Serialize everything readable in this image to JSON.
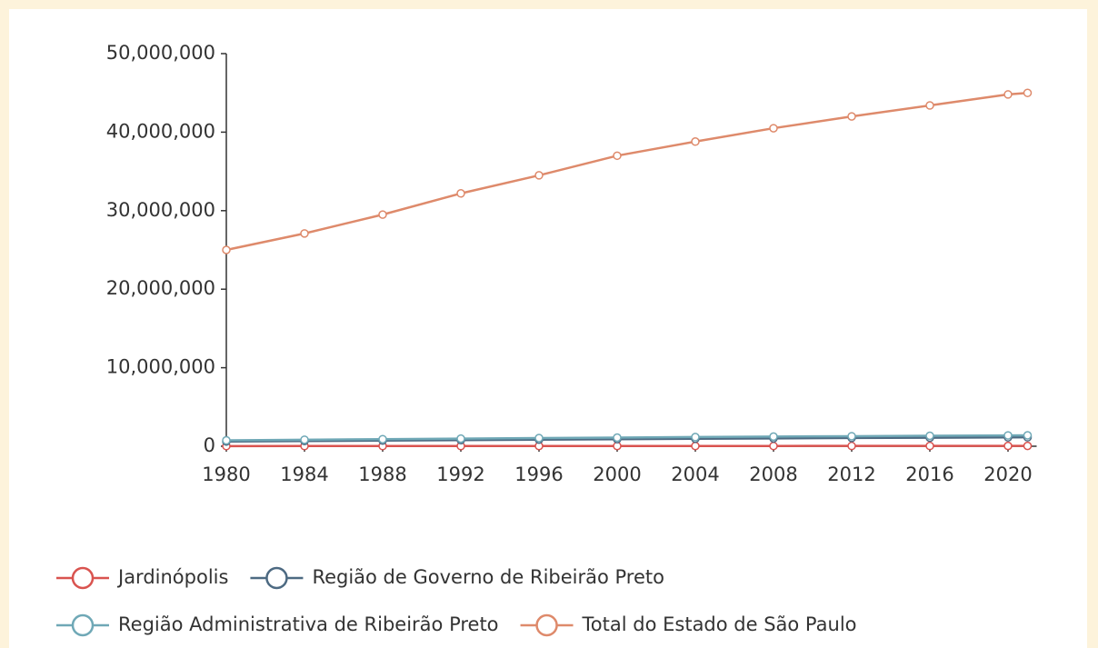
{
  "chart_data": {
    "type": "line",
    "x": [
      1980,
      1984,
      1988,
      1992,
      1996,
      2000,
      2004,
      2008,
      2012,
      2016,
      2020,
      2021
    ],
    "xlim": [
      1980,
      2021
    ],
    "xticks": [
      1980,
      1984,
      1988,
      1992,
      1996,
      2000,
      2004,
      2008,
      2012,
      2016,
      2020
    ],
    "ylim": [
      0,
      50000000
    ],
    "yticks": [
      0,
      {
        "value": 10000000,
        "label": "10,000,000"
      },
      {
        "value": 20000000,
        "label": "20,000,000"
      },
      {
        "value": 30000000,
        "label": "30,000,000"
      },
      {
        "value": 40000000,
        "label": "40,000,000"
      },
      {
        "value": 50000000,
        "label": "50,000,000"
      }
    ],
    "legend": "bottom",
    "series": [
      {
        "name": "Jardinópolis",
        "color": "#d9534f",
        "values": [
          21000,
          23000,
          25000,
          27000,
          29000,
          31000,
          33000,
          35000,
          38000,
          40000,
          43000,
          44000
        ]
      },
      {
        "name": "Região de Governo de Ribeirão Preto",
        "color": "#4d6a82",
        "values": [
          600000,
          660000,
          720000,
          780000,
          840000,
          900000,
          950000,
          1000000,
          1050000,
          1090000,
          1130000,
          1140000
        ]
      },
      {
        "name": "Região Administrativa de Ribeirão Preto",
        "color": "#6fa8b6",
        "values": [
          750000,
          830000,
          900000,
          970000,
          1040000,
          1100000,
          1170000,
          1230000,
          1280000,
          1330000,
          1380000,
          1390000
        ]
      },
      {
        "name": "Total do Estado de São Paulo",
        "color": "#de8a6b",
        "values": [
          25000000,
          27100000,
          29500000,
          32200000,
          34500000,
          37000000,
          38800000,
          40500000,
          42000000,
          43400000,
          44800000,
          45000000
        ]
      }
    ]
  }
}
